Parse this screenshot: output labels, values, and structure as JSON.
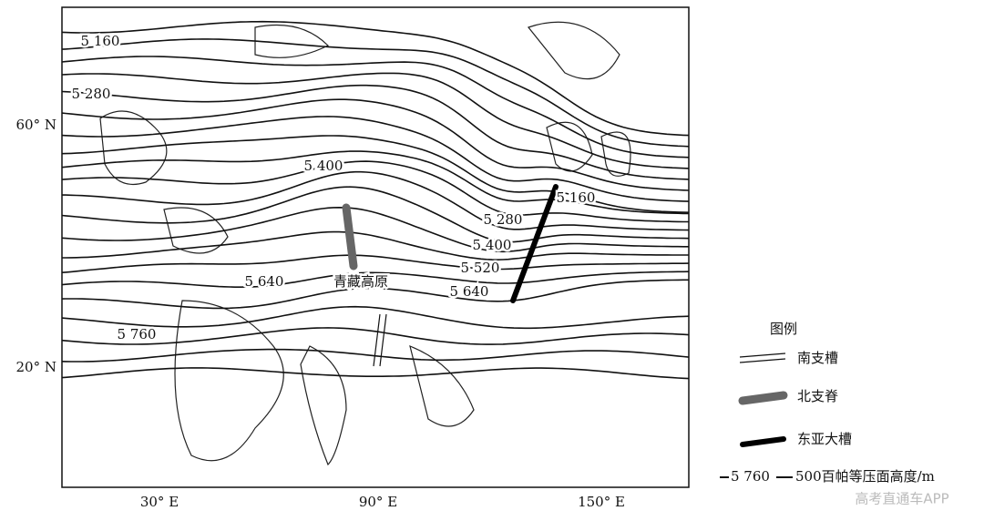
{
  "map": {
    "x_axis_labels": [
      "30° E",
      "90° E",
      "150° E"
    ],
    "y_axis_labels": [
      "60° N",
      "20° N"
    ],
    "contour_labels": [
      "5 160",
      "5 280",
      "5 400",
      "5 640",
      "5 760",
      "5 160",
      "5 280",
      "5 400",
      "5 520",
      "5 640"
    ],
    "region_label": "青藏高原"
  },
  "legend": {
    "title": "图例",
    "items": [
      "南支槽",
      "北支脊",
      "东亚大槽"
    ],
    "contour_sample": "5 760",
    "contour_unit": "500百帕等压面高度/m"
  },
  "watermark": "高考直通车APP"
}
